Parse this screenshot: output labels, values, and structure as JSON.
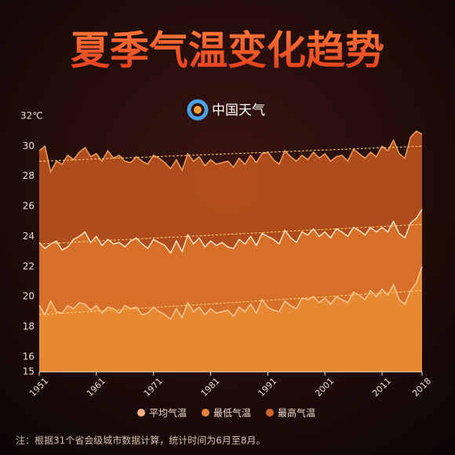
{
  "header": {
    "title": "夏季气温变化趋势",
    "logo": "中国天气"
  },
  "note": "注：根据31个省会级城市数据计算，统计时间为6月至8月。",
  "chart_data": {
    "type": "area",
    "x": [
      1951,
      1952,
      1953,
      1954,
      1955,
      1956,
      1957,
      1958,
      1959,
      1960,
      1961,
      1962,
      1963,
      1964,
      1965,
      1966,
      1967,
      1968,
      1969,
      1970,
      1971,
      1972,
      1973,
      1974,
      1975,
      1976,
      1977,
      1978,
      1979,
      1980,
      1981,
      1982,
      1983,
      1984,
      1985,
      1986,
      1987,
      1988,
      1989,
      1990,
      1991,
      1992,
      1993,
      1994,
      1995,
      1996,
      1997,
      1998,
      1999,
      2000,
      2001,
      2002,
      2003,
      2004,
      2005,
      2006,
      2007,
      2008,
      2009,
      2010,
      2011,
      2012,
      2013,
      2014,
      2015,
      2016,
      2017,
      2018
    ],
    "xlim": [
      1951,
      2018
    ],
    "xticks": [
      1951,
      1961,
      1971,
      1981,
      1991,
      2001,
      2011,
      2018
    ],
    "ylim": [
      15,
      32
    ],
    "yticks": [
      15,
      16,
      18,
      20,
      22,
      24,
      26,
      28,
      30,
      {
        "value": 32,
        "label": "32℃"
      }
    ],
    "series": [
      {
        "name": "最高气温",
        "color": "#d2662a",
        "fill": "#b6501c",
        "line": "#eea060",
        "trend": [
          29.0,
          30.0
        ],
        "values": [
          29.7,
          30.0,
          28.3,
          29.0,
          28.8,
          29.4,
          29.1,
          29.6,
          29.9,
          29.3,
          29.5,
          29.0,
          29.7,
          29.2,
          29.4,
          29.0,
          28.9,
          29.3,
          29.0,
          28.8,
          29.4,
          29.2,
          28.9,
          28.5,
          29.1,
          28.4,
          29.5,
          29.0,
          29.3,
          28.7,
          29.1,
          28.8,
          28.9,
          29.0,
          28.6,
          29.2,
          28.8,
          29.4,
          28.9,
          29.5,
          29.6,
          29.1,
          28.8,
          29.7,
          29.3,
          29.0,
          29.4,
          29.1,
          29.6,
          29.2,
          29.5,
          29.0,
          29.3,
          29.4,
          29.0,
          29.8,
          29.5,
          29.2,
          29.6,
          29.3,
          30.0,
          29.7,
          30.4,
          29.5,
          29.2,
          30.6,
          31.0,
          30.8
        ]
      },
      {
        "name": "平均气温",
        "color": "#f5b08a",
        "fill": "#d8722a",
        "line": "#ffe4c8",
        "trend": [
          23.5,
          24.8
        ],
        "values": [
          23.6,
          23.2,
          23.5,
          23.7,
          23.1,
          23.3,
          23.8,
          24.0,
          24.3,
          23.6,
          24.0,
          23.4,
          23.8,
          23.5,
          23.6,
          23.3,
          23.7,
          23.9,
          23.5,
          23.2,
          23.8,
          23.6,
          23.4,
          22.9,
          23.7,
          23.0,
          24.1,
          23.5,
          23.9,
          23.3,
          23.7,
          23.4,
          23.6,
          23.3,
          23.2,
          23.8,
          23.5,
          24.0,
          23.4,
          24.2,
          24.0,
          23.8,
          23.5,
          24.4,
          23.9,
          23.6,
          24.3,
          24.1,
          24.5,
          24.0,
          24.3,
          23.9,
          24.5,
          24.3,
          24.0,
          24.6,
          24.4,
          24.1,
          24.6,
          24.3,
          24.6,
          24.3,
          25.0,
          24.2,
          23.9,
          24.9,
          25.2,
          25.8
        ]
      },
      {
        "name": "最低气温",
        "color": "#e8843a",
        "fill": "#e88a34",
        "line": "#f8c898",
        "trend": [
          18.8,
          20.4
        ],
        "values": [
          19.4,
          18.8,
          19.7,
          19.0,
          18.9,
          19.4,
          19.2,
          19.6,
          19.5,
          19.1,
          19.4,
          18.9,
          19.3,
          19.2,
          18.9,
          19.4,
          19.2,
          19.3,
          18.8,
          18.9,
          19.3,
          19.0,
          18.8,
          18.5,
          19.2,
          18.6,
          19.6,
          19.0,
          19.3,
          18.8,
          19.2,
          18.9,
          19.0,
          19.1,
          18.7,
          19.3,
          19.0,
          19.5,
          18.9,
          19.8,
          19.3,
          19.1,
          19.0,
          19.7,
          19.4,
          19.2,
          19.9,
          19.8,
          20.0,
          19.6,
          19.9,
          19.5,
          20.0,
          19.8,
          19.6,
          20.3,
          20.1,
          19.8,
          20.4,
          20.0,
          20.5,
          20.1,
          20.8,
          19.8,
          19.5,
          20.4,
          20.9,
          22.0
        ]
      }
    ],
    "legend_order": [
      1,
      2,
      0
    ]
  }
}
